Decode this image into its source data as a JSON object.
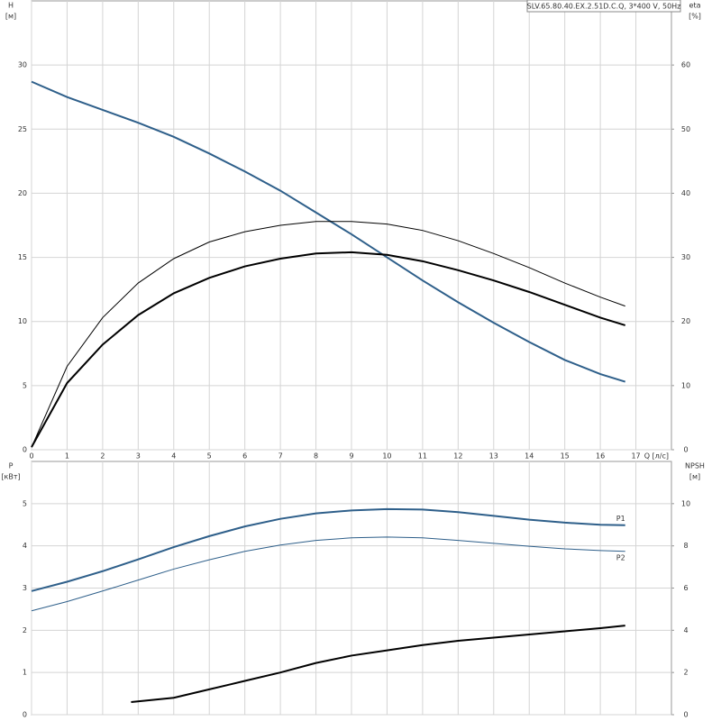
{
  "chart_data": [
    {
      "type": "line",
      "title": "SLV.65.80.40.EX.2.51D.C.Q, 3*400 V, 50Hz",
      "x_label": "Q [л/с]",
      "y_label": "H",
      "y_unit": "[м]",
      "y2_label": "eta",
      "y2_unit": "[%]",
      "x": [
        0,
        1,
        2,
        3,
        4,
        5,
        6,
        7,
        8,
        9,
        10,
        11,
        12,
        13,
        14,
        15,
        16,
        16.7
      ],
      "xlim": [
        0,
        18
      ],
      "xticks": [
        0,
        1,
        2,
        3,
        4,
        5,
        6,
        7,
        8,
        9,
        10,
        11,
        12,
        13,
        14,
        15,
        16,
        17
      ],
      "ylim": [
        0,
        35
      ],
      "yticks": [
        0,
        5,
        10,
        15,
        20,
        25,
        30
      ],
      "y2lim": [
        0,
        70
      ],
      "y2ticks": [
        0,
        10,
        20,
        30,
        40,
        50,
        60
      ],
      "grid": true,
      "series": [
        {
          "color": "#2e5f8a",
          "width": 2,
          "values": [
            28.7,
            27.5,
            26.5,
            25.5,
            24.4,
            23.1,
            21.7,
            20.2,
            18.5,
            16.8,
            15.0,
            13.2,
            11.5,
            9.9,
            8.4,
            7.0,
            5.9,
            5.3
          ]
        },
        {
          "color": "#000000",
          "width": 1,
          "axis": "y2",
          "values": [
            0.4,
            13,
            20.6,
            26,
            29.8,
            32.4,
            34,
            35,
            35.6,
            35.6,
            35.2,
            34.2,
            32.6,
            30.6,
            28.4,
            26,
            23.8,
            22.4
          ]
        },
        {
          "color": "#000000",
          "width": 2,
          "axis": "y2",
          "values": [
            0.4,
            10.4,
            16.4,
            21,
            24.4,
            26.8,
            28.6,
            29.8,
            30.6,
            30.8,
            30.4,
            29.4,
            28,
            26.4,
            24.6,
            22.6,
            20.6,
            19.4
          ]
        }
      ]
    },
    {
      "type": "line",
      "y_label": "P",
      "y_unit": "[кВт]",
      "y2_label": "NPSH",
      "y2_unit": "[м]",
      "x": [
        0,
        1,
        2,
        3,
        4,
        5,
        6,
        7,
        8,
        9,
        10,
        11,
        12,
        13,
        14,
        15,
        16,
        16.7
      ],
      "xlim": [
        0,
        18
      ],
      "ylim": [
        0,
        6
      ],
      "yticks": [
        0,
        1,
        2,
        3,
        4,
        5
      ],
      "y2lim": [
        0,
        12
      ],
      "y2ticks": [
        0,
        2,
        4,
        6,
        8,
        10
      ],
      "grid": true,
      "series": [
        {
          "name": "P1",
          "color": "#2e5f8a",
          "width": 2,
          "values": [
            2.93,
            3.15,
            3.4,
            3.68,
            3.97,
            4.23,
            4.46,
            4.64,
            4.77,
            4.84,
            4.87,
            4.86,
            4.8,
            4.71,
            4.62,
            4.55,
            4.5,
            4.49
          ]
        },
        {
          "name": "P2",
          "color": "#2e5f8a",
          "width": 1,
          "values": [
            2.46,
            2.68,
            2.93,
            3.19,
            3.45,
            3.67,
            3.87,
            4.02,
            4.13,
            4.19,
            4.21,
            4.19,
            4.13,
            4.06,
            3.99,
            3.93,
            3.89,
            3.87
          ]
        },
        {
          "color": "#000000",
          "width": 2,
          "axis": "y2",
          "x": [
            2.8,
            4,
            5,
            6,
            7,
            8,
            9,
            10,
            11,
            12,
            13,
            14,
            15,
            16,
            16.7
          ],
          "values": [
            0.6,
            0.8,
            1.2,
            1.6,
            2.0,
            2.45,
            2.8,
            3.05,
            3.3,
            3.5,
            3.65,
            3.8,
            3.95,
            4.1,
            4.22
          ]
        }
      ]
    }
  ]
}
